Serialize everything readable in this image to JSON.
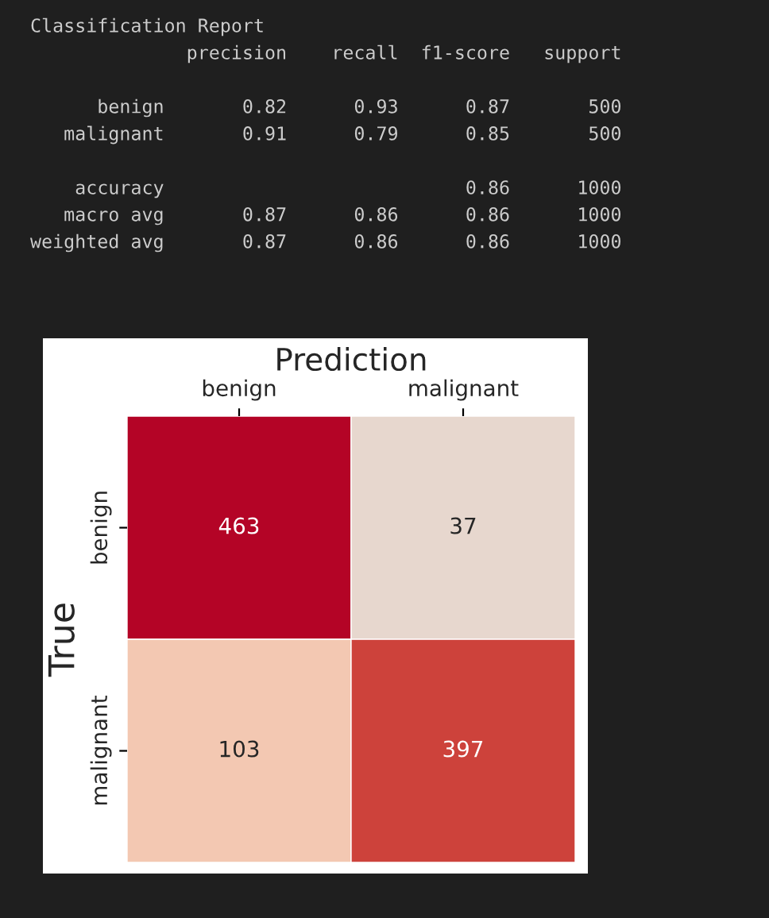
{
  "chart_data": [
    {
      "type": "other",
      "title": "Classification Report",
      "annotations": [
        "              precision    recall  f1-score   support",
        "      benign       0.82      0.93      0.87       500",
        "   malignant       0.91      0.79      0.85       500",
        "    accuracy                           0.86      1000",
        "   macro avg       0.87      0.86      0.86      1000",
        "weighted avg       0.87      0.86      0.86      1000"
      ]
    },
    {
      "type": "heatmap",
      "xlabel": "Prediction",
      "ylabel": "True",
      "categories": [
        "benign",
        "malignant"
      ],
      "y_categories": [
        "benign",
        "malignant"
      ],
      "cells": [
        [
          463,
          37
        ],
        [
          103,
          397
        ]
      ],
      "data_labels": true
    }
  ]
}
